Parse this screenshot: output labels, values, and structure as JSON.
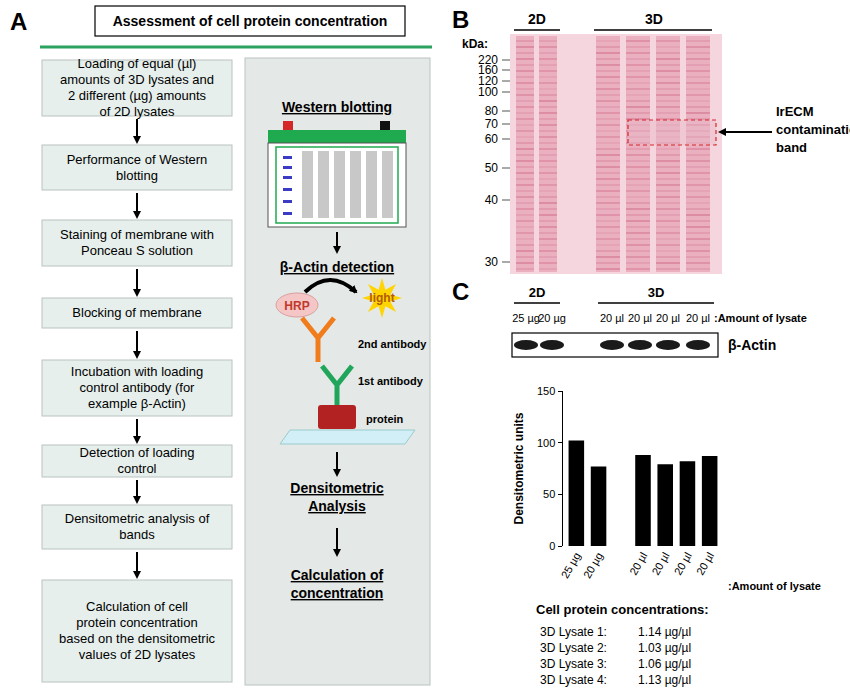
{
  "panel_a": {
    "label": "A",
    "title": "Assessment of cell protein concentration",
    "steps": [
      "Loading of equal (µl) amounts of 3D lysates and 2 different (µg) amounts of 2D lysates",
      "Performance of Western blotting",
      "Staining of membrane with Ponceau S solution",
      "Blocking of membrane",
      "Incubation with loading control antibody (for example β-Actin)",
      "Detection of loading control",
      "Densitometric analysis of bands",
      "Calculation of cell protein concentration based on the densitometric values of 2D lysates"
    ],
    "schematic": {
      "western_blotting": "Western blotting",
      "detection": "β-Actin detection",
      "hrp": "HRP",
      "light": "light",
      "second_antibody": "2nd antibody",
      "first_antibody": "1st antibody",
      "protein": "protein",
      "densitometric": "Densitometric Analysis",
      "calculation": "Calculation of concentration"
    }
  },
  "panel_b": {
    "label": "B",
    "unit": "kDa:",
    "markers": [
      220,
      160,
      120,
      100,
      80,
      70,
      60,
      50,
      40,
      30
    ],
    "groups": [
      "2D",
      "3D"
    ],
    "annotation": "IrECM contamination band"
  },
  "panel_c": {
    "label": "C",
    "groups": [
      "2D",
      "3D"
    ],
    "lanes": [
      "25 µg",
      "20 µg",
      "20 µl",
      "20 µl",
      "20 µl",
      "20 µl"
    ],
    "lane_caption": ":Amount of lysate",
    "band": "β-Actin",
    "concentrations_title": "Cell protein concentrations:",
    "concentrations": [
      {
        "name": "3D Lysate 1:",
        "value": "1.14 µg/µl"
      },
      {
        "name": "3D Lysate 2:",
        "value": "1.03 µg/µl"
      },
      {
        "name": "3D Lysate 3:",
        "value": "1.06 µg/µl"
      },
      {
        "name": "3D Lysate 4:",
        "value": "1.13 µg/µl"
      }
    ]
  },
  "chart_data": {
    "type": "bar",
    "categories": [
      "25 µg",
      "20 µg",
      null,
      "20 µl",
      "20 µl",
      "20 µl",
      "20 µl"
    ],
    "values": [
      102,
      77,
      null,
      88,
      79,
      82,
      87
    ],
    "color": "#000000",
    "y_label": "Densitometric units",
    "x_label": ":Amount of lysate",
    "ylim": [
      0,
      150
    ],
    "yticks": [
      0,
      50,
      100,
      150
    ],
    "grid": false
  }
}
